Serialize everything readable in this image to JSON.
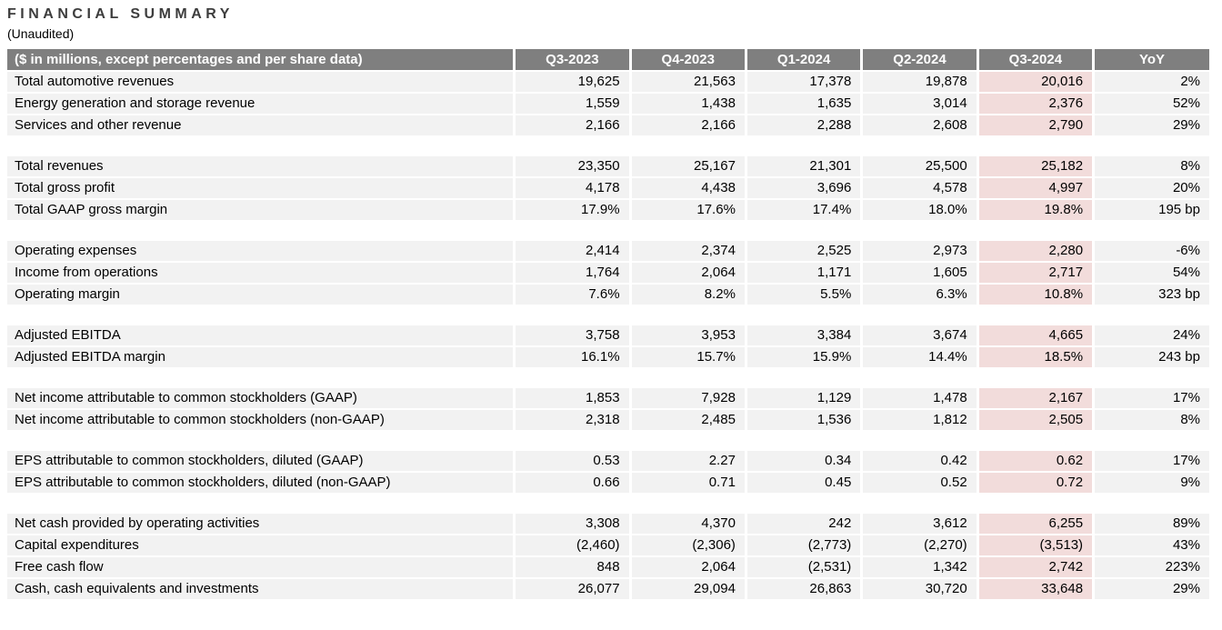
{
  "page": {
    "title": "FINANCIAL SUMMARY",
    "subtitle": "(Unaudited)"
  },
  "table": {
    "header": {
      "label": "($ in millions, except percentages and per share data)",
      "columns": [
        "Q3-2023",
        "Q4-2023",
        "Q1-2024",
        "Q2-2024",
        "Q3-2024",
        "YoY"
      ]
    },
    "highlight_column": "Q3-2024",
    "highlight_col_index": 4,
    "colors": {
      "header_bg": "#7f7f7f",
      "header_text": "#ffffff",
      "row_bg": "#f2f2f2",
      "highlight_bg": "#f2dcdb",
      "title_text": "#3d3d3d"
    },
    "groups": [
      {
        "rows": [
          {
            "label": "Total automotive revenues",
            "values": [
              "19,625",
              "21,563",
              "17,378",
              "19,878",
              "20,016",
              "2%"
            ]
          },
          {
            "label": "Energy generation and storage revenue",
            "values": [
              "1,559",
              "1,438",
              "1,635",
              "3,014",
              "2,376",
              "52%"
            ]
          },
          {
            "label": "Services and other revenue",
            "values": [
              "2,166",
              "2,166",
              "2,288",
              "2,608",
              "2,790",
              "29%"
            ]
          }
        ]
      },
      {
        "rows": [
          {
            "label": "Total revenues",
            "values": [
              "23,350",
              "25,167",
              "21,301",
              "25,500",
              "25,182",
              "8%"
            ]
          },
          {
            "label": "Total gross profit",
            "values": [
              "4,178",
              "4,438",
              "3,696",
              "4,578",
              "4,997",
              "20%"
            ]
          },
          {
            "label": "Total GAAP gross margin",
            "values": [
              "17.9%",
              "17.6%",
              "17.4%",
              "18.0%",
              "19.8%",
              "195 bp"
            ]
          }
        ]
      },
      {
        "rows": [
          {
            "label": "Operating expenses",
            "values": [
              "2,414",
              "2,374",
              "2,525",
              "2,973",
              "2,280",
              "-6%"
            ]
          },
          {
            "label": "Income from operations",
            "values": [
              "1,764",
              "2,064",
              "1,171",
              "1,605",
              "2,717",
              "54%"
            ]
          },
          {
            "label": "Operating margin",
            "values": [
              "7.6%",
              "8.2%",
              "5.5%",
              "6.3%",
              "10.8%",
              "323 bp"
            ]
          }
        ]
      },
      {
        "rows": [
          {
            "label": "Adjusted EBITDA",
            "values": [
              "3,758",
              "3,953",
              "3,384",
              "3,674",
              "4,665",
              "24%"
            ]
          },
          {
            "label": "Adjusted EBITDA margin",
            "values": [
              "16.1%",
              "15.7%",
              "15.9%",
              "14.4%",
              "18.5%",
              "243 bp"
            ]
          }
        ]
      },
      {
        "rows": [
          {
            "label": "Net income attributable to common stockholders (GAAP)",
            "values": [
              "1,853",
              "7,928",
              "1,129",
              "1,478",
              "2,167",
              "17%"
            ]
          },
          {
            "label": "Net income attributable to common stockholders (non-GAAP)",
            "values": [
              "2,318",
              "2,485",
              "1,536",
              "1,812",
              "2,505",
              "8%"
            ]
          }
        ]
      },
      {
        "rows": [
          {
            "label": "EPS attributable to common stockholders, diluted (GAAP)",
            "values": [
              "0.53",
              "2.27",
              "0.34",
              "0.42",
              "0.62",
              "17%"
            ]
          },
          {
            "label": "EPS attributable to common stockholders, diluted (non-GAAP)",
            "values": [
              "0.66",
              "0.71",
              "0.45",
              "0.52",
              "0.72",
              "9%"
            ]
          }
        ]
      },
      {
        "rows": [
          {
            "label": "Net cash provided by operating activities",
            "values": [
              "3,308",
              "4,370",
              "242",
              "3,612",
              "6,255",
              "89%"
            ]
          },
          {
            "label": "Capital expenditures",
            "values": [
              "(2,460)",
              "(2,306)",
              "(2,773)",
              "(2,270)",
              "(3,513)",
              "43%"
            ]
          },
          {
            "label": "Free cash flow",
            "values": [
              "848",
              "2,064",
              "(2,531)",
              "1,342",
              "2,742",
              "223%"
            ]
          },
          {
            "label": "Cash, cash equivalents and investments",
            "values": [
              "26,077",
              "29,094",
              "26,863",
              "30,720",
              "33,648",
              "29%"
            ]
          }
        ]
      }
    ]
  }
}
